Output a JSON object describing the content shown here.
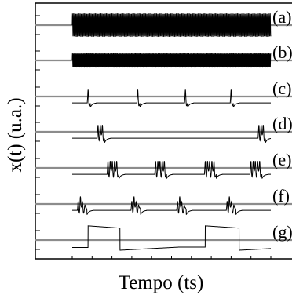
{
  "chart_data": {
    "type": "line",
    "xlabel": "Tempo (ts)",
    "ylabel": "x(t) (u.a.)",
    "grid": false,
    "panels": [
      {
        "label": "(a)",
        "pattern": "continuous-oscillation",
        "period": 0.0055,
        "amplitude": 0.9
      },
      {
        "label": "(b)",
        "pattern": "continuous-oscillation",
        "period": 0.0048,
        "amplitude": 0.55
      },
      {
        "label": "(c)",
        "pattern": "periodic-single-spikes",
        "events": [
          0.08,
          0.33,
          0.57,
          0.8
        ],
        "spikes_per_event": 1
      },
      {
        "label": "(d)",
        "pattern": "spike-bursts",
        "events": [
          0.13,
          0.94
        ],
        "spikes_per_event": 3
      },
      {
        "label": "(e)",
        "pattern": "spike-bursts",
        "events": [
          0.18,
          0.42,
          0.67,
          0.9
        ],
        "spikes_per_event": 5
      },
      {
        "label": "(f)",
        "pattern": "irregular-bursts",
        "events": [
          0.03,
          0.3,
          0.53,
          0.78
        ],
        "spikes_per_event": 4
      },
      {
        "label": "(g)",
        "pattern": "square-pulses",
        "pulses": [
          [
            0.08,
            0.24
          ],
          [
            0.67,
            0.84
          ]
        ]
      }
    ]
  }
}
